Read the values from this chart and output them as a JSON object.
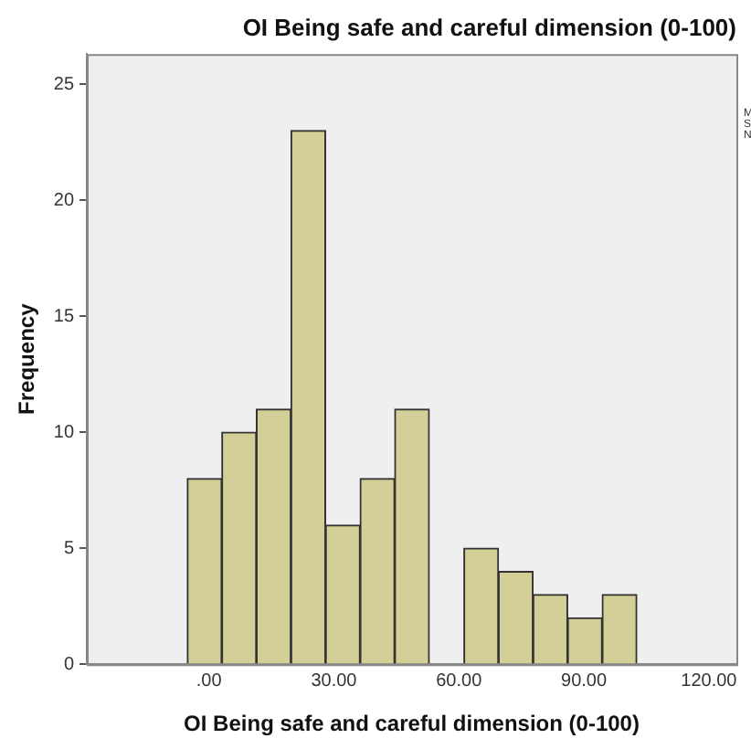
{
  "chart_data": {
    "type": "histogram",
    "title": "OI Being safe and careful dimension (0-100)",
    "xlabel": "OI Being safe and careful dimension (0-100)",
    "ylabel": "Frequency",
    "bins": [
      -5.2,
      3.1,
      11.4,
      19.7,
      28,
      36.3,
      44.6,
      52.9,
      61.2,
      69.5,
      77.8,
      86.1,
      94.4,
      102.7
    ],
    "values": [
      8,
      10,
      11,
      23,
      6,
      8,
      11,
      0,
      5,
      4,
      3,
      2,
      3
    ],
    "color": "#d3cf97",
    "xlim": [
      -29.3,
      126.6
    ],
    "xticks": [
      {
        "value": 0,
        "label": ".00"
      },
      {
        "value": 30,
        "label": "30.00"
      },
      {
        "value": 60,
        "label": "60.00"
      },
      {
        "value": 90,
        "label": "90.00"
      },
      {
        "value": 120,
        "label": "120.00"
      }
    ],
    "ylim": [
      0,
      26.3
    ],
    "yticks": [
      0,
      5,
      10,
      15,
      20,
      25
    ],
    "grid": false,
    "legend": false,
    "annotations": [
      "M",
      "S",
      "N"
    ]
  }
}
